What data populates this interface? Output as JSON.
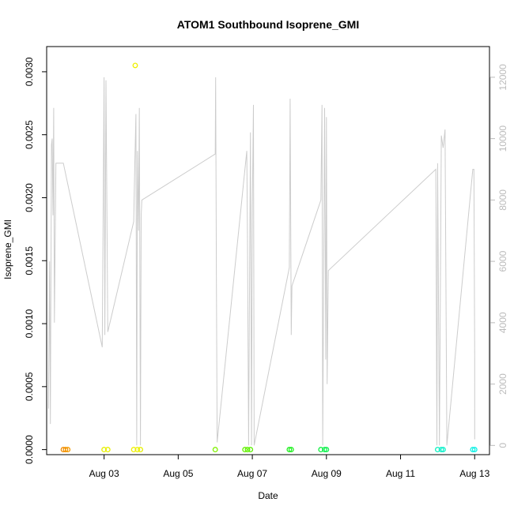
{
  "chart_data": {
    "type": "scatter",
    "title": "ATOM1 Southbound Isoprene_GMI",
    "xlabel": "Date",
    "ylabel": "Isoprene_GMI",
    "x_ticks": [
      {
        "day": 3,
        "label": "Aug 03"
      },
      {
        "day": 5,
        "label": "Aug 05"
      },
      {
        "day": 7,
        "label": "Aug 07"
      },
      {
        "day": 9,
        "label": "Aug 09"
      },
      {
        "day": 11,
        "label": "Aug 11"
      },
      {
        "day": 13,
        "label": "Aug 13"
      }
    ],
    "xlim": [
      1.45,
      13.4
    ],
    "ylim": [
      -4e-05,
      0.0032
    ],
    "y_ticks": [
      "0.0000",
      "0.0005",
      "0.0010",
      "0.0015",
      "0.0020",
      "0.0025",
      "0.0030"
    ],
    "y_tick_values": [
      0,
      0.0005,
      0.001,
      0.0015,
      0.002,
      0.0025,
      0.003
    ],
    "y2lim": [
      -300,
      13000
    ],
    "y2_ticks": [
      "0",
      "2000",
      "4000",
      "6000",
      "8000",
      "10000",
      "12000"
    ],
    "y2_tick_values": [
      0,
      2000,
      4000,
      6000,
      8000,
      10000,
      12000
    ],
    "grid": false,
    "colors": {
      "line": "#cccccc",
      "axis": "#000000",
      "secondary_axis": "#bbbbbb"
    },
    "points": [
      {
        "x": 1.9,
        "y": 0,
        "color": "#f08a00"
      },
      {
        "x": 1.96,
        "y": 0,
        "color": "#f29000"
      },
      {
        "x": 2.02,
        "y": 0,
        "color": "#f39a00"
      },
      {
        "x": 3.0,
        "y": 0,
        "color": "#e6f000"
      },
      {
        "x": 3.1,
        "y": 0,
        "color": "#e8f000"
      },
      {
        "x": 3.8,
        "y": 0,
        "color": "#f0f000"
      },
      {
        "x": 3.84,
        "y": 0.00305,
        "color": "#eef000"
      },
      {
        "x": 3.9,
        "y": 0,
        "color": "#ecf000"
      },
      {
        "x": 3.98,
        "y": 0,
        "color": "#e6f000"
      },
      {
        "x": 6.0,
        "y": 0,
        "color": "#80f000"
      },
      {
        "x": 6.8,
        "y": 0,
        "color": "#66f000"
      },
      {
        "x": 6.87,
        "y": 0,
        "color": "#60f000"
      },
      {
        "x": 6.95,
        "y": 0,
        "color": "#58f000"
      },
      {
        "x": 8.0,
        "y": 0,
        "color": "#20f020"
      },
      {
        "x": 8.05,
        "y": 0,
        "color": "#20f020"
      },
      {
        "x": 8.85,
        "y": 0,
        "color": "#10f040"
      },
      {
        "x": 8.95,
        "y": 0,
        "color": "#10f050"
      },
      {
        "x": 9.0,
        "y": 0,
        "color": "#10f050"
      },
      {
        "x": 12.0,
        "y": 0,
        "color": "#10f0c0"
      },
      {
        "x": 12.1,
        "y": 0,
        "color": "#10f0c8"
      },
      {
        "x": 12.15,
        "y": 0,
        "color": "#10f0cc"
      },
      {
        "x": 12.95,
        "y": 0,
        "color": "#10f0e0"
      },
      {
        "x": 13.0,
        "y": 0,
        "color": "#10f0e8"
      }
    ],
    "secondary_line": [
      [
        1.5,
        1200
      ],
      [
        1.53,
        6000
      ],
      [
        1.55,
        700
      ],
      [
        1.58,
        9800
      ],
      [
        1.6,
        10000
      ],
      [
        1.62,
        7500
      ],
      [
        1.64,
        11000
      ],
      [
        1.66,
        4000
      ],
      [
        1.7,
        9200
      ],
      [
        1.9,
        9200
      ],
      [
        2.95,
        3200
      ],
      [
        3.0,
        12000
      ],
      [
        3.02,
        3600
      ],
      [
        3.05,
        11900
      ],
      [
        3.1,
        3700
      ],
      [
        3.8,
        7300
      ],
      [
        3.83,
        9200
      ],
      [
        3.86,
        10800
      ],
      [
        3.88,
        0
      ],
      [
        3.9,
        9600
      ],
      [
        3.93,
        7000
      ],
      [
        3.95,
        11000
      ],
      [
        3.98,
        0
      ],
      [
        4.0,
        7500
      ],
      [
        4.02,
        8000
      ],
      [
        6.0,
        9500
      ],
      [
        6.01,
        12000
      ],
      [
        6.03,
        5800
      ],
      [
        6.05,
        100
      ],
      [
        6.85,
        9600
      ],
      [
        6.87,
        6600
      ],
      [
        6.9,
        0
      ],
      [
        6.95,
        10200
      ],
      [
        6.98,
        0
      ],
      [
        7.0,
        7800
      ],
      [
        7.03,
        11100
      ],
      [
        7.05,
        0
      ],
      [
        8.0,
        5800
      ],
      [
        8.02,
        11300
      ],
      [
        8.05,
        3600
      ],
      [
        8.07,
        5200
      ],
      [
        8.85,
        8000
      ],
      [
        8.88,
        11100
      ],
      [
        8.9,
        0
      ],
      [
        8.95,
        11000
      ],
      [
        8.98,
        2800
      ],
      [
        9.0,
        10700
      ],
      [
        9.02,
        2000
      ],
      [
        9.05,
        5700
      ],
      [
        11.95,
        9000
      ],
      [
        11.98,
        0
      ],
      [
        12.0,
        9200
      ],
      [
        12.05,
        0
      ],
      [
        12.1,
        10100
      ],
      [
        12.15,
        9700
      ],
      [
        12.2,
        10300
      ],
      [
        12.25,
        0
      ],
      [
        12.95,
        9000
      ],
      [
        12.98,
        9000
      ],
      [
        13.0,
        2800
      ],
      [
        13.0,
        200
      ]
    ]
  }
}
